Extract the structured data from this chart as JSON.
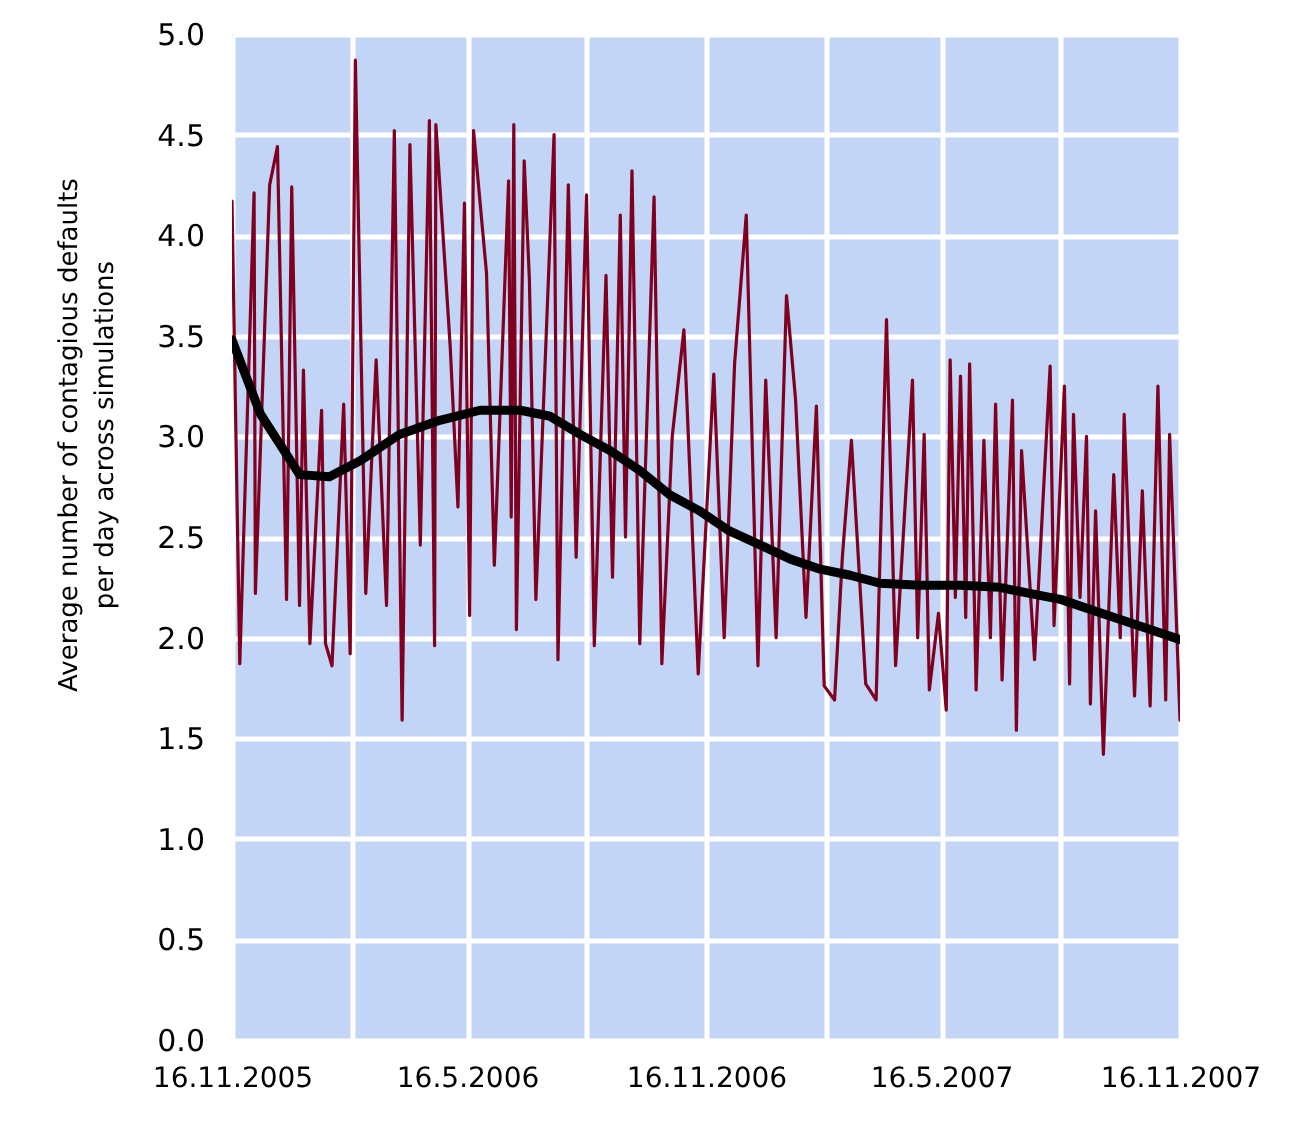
{
  "chart_data": {
    "type": "line",
    "ylabel": "Average number of contagious defaults\nper day across simulations",
    "xlim": [
      "2005-11-16",
      "2007-11-16"
    ],
    "xticks": [
      {
        "value": "2005-11-16",
        "label": "16.11.2005"
      },
      {
        "value": "2006-02-16",
        "label": null
      },
      {
        "value": "2006-05-16",
        "label": "16.5.2006"
      },
      {
        "value": "2006-08-16",
        "label": null
      },
      {
        "value": "2006-11-16",
        "label": "16.11.2006"
      },
      {
        "value": "2007-02-16",
        "label": null
      },
      {
        "value": "2007-05-16",
        "label": "16.5.2007"
      },
      {
        "value": "2007-08-16",
        "label": null
      },
      {
        "value": "2007-11-16",
        "label": "16.11.2007"
      }
    ],
    "ylim": [
      0,
      5
    ],
    "yticks": [
      {
        "value": 0,
        "label": "0.0"
      },
      {
        "value": 0.5,
        "label": "0.5"
      },
      {
        "value": 1,
        "label": "1.0"
      },
      {
        "value": 1.5,
        "label": "1.5"
      },
      {
        "value": 2,
        "label": "2.0"
      },
      {
        "value": 2.5,
        "label": "2.5"
      },
      {
        "value": 3,
        "label": "3.0"
      },
      {
        "value": 3.5,
        "label": "3.5"
      },
      {
        "value": 4,
        "label": "4.0"
      },
      {
        "value": 4.5,
        "label": "4.5"
      },
      {
        "value": 5,
        "label": "5.0"
      }
    ],
    "grid": true,
    "series": [
      {
        "color": "#80001f",
        "x": [
          "2005-11-16",
          "2005-11-22",
          "2005-12-03",
          "2005-12-04",
          "2005-12-15",
          "2005-12-21",
          "2005-12-28",
          "2006-01-01",
          "2006-01-07",
          "2006-01-10",
          "2006-01-15",
          "2006-01-24",
          "2006-01-27",
          "2006-02-01",
          "2006-02-10",
          "2006-02-15",
          "2006-02-19",
          "2006-02-27",
          "2006-03-07",
          "2006-03-15",
          "2006-03-21",
          "2006-03-27",
          "2006-04-02",
          "2006-04-10",
          "2006-04-17",
          "2006-04-21",
          "2006-04-22",
          "2006-05-03",
          "2006-05-09",
          "2006-05-14",
          "2006-05-18",
          "2006-05-21",
          "2006-05-31",
          "2006-06-06",
          "2006-06-17",
          "2006-06-19",
          "2006-06-21",
          "2006-06-23",
          "2006-06-29",
          "2006-07-03",
          "2006-07-08",
          "2006-07-22",
          "2006-07-25",
          "2006-08-02",
          "2006-08-08",
          "2006-08-16",
          "2006-08-22",
          "2006-08-31",
          "2006-09-05",
          "2006-09-11",
          "2006-09-15",
          "2006-09-20",
          "2006-09-26",
          "2006-10-07",
          "2006-10-13",
          "2006-10-21",
          "2006-10-30",
          "2006-11-10",
          "2006-11-22",
          "2006-11-30",
          "2006-12-08",
          "2006-12-17",
          "2006-12-26",
          "2007-01-01",
          "2007-01-09",
          "2007-01-17",
          "2007-01-24",
          "2007-02-01",
          "2007-02-09",
          "2007-02-15",
          "2007-02-23",
          "2007-03-01",
          "2007-03-08",
          "2007-03-19",
          "2007-03-27",
          "2007-04-04",
          "2007-04-11",
          "2007-04-24",
          "2007-04-28",
          "2007-05-03",
          "2007-05-07",
          "2007-05-14",
          "2007-05-20",
          "2007-05-23",
          "2007-05-27",
          "2007-05-31",
          "2007-06-04",
          "2007-06-07",
          "2007-06-12",
          "2007-06-18",
          "2007-06-23",
          "2007-06-27",
          "2007-07-02",
          "2007-07-10",
          "2007-07-13",
          "2007-07-17",
          "2007-07-27",
          "2007-08-08",
          "2007-08-11",
          "2007-08-19",
          "2007-08-23",
          "2007-08-26",
          "2007-08-31",
          "2007-09-05",
          "2007-09-08",
          "2007-09-12",
          "2007-09-18",
          "2007-09-26",
          "2007-10-01",
          "2007-10-04",
          "2007-10-12",
          "2007-10-18",
          "2007-10-24",
          "2007-10-30",
          "2007-11-05",
          "2007-11-08",
          "2007-11-16"
        ],
        "values": [
          4.17,
          1.87,
          4.21,
          2.22,
          4.25,
          4.44,
          2.19,
          4.24,
          2.16,
          3.33,
          1.97,
          3.13,
          1.97,
          1.86,
          3.16,
          1.92,
          4.87,
          2.22,
          3.38,
          2.16,
          4.52,
          1.59,
          4.45,
          2.46,
          4.57,
          1.96,
          4.55,
          3.45,
          2.65,
          4.16,
          2.11,
          4.52,
          3.81,
          2.36,
          4.27,
          2.6,
          4.55,
          2.04,
          4.37,
          3.78,
          2.19,
          4.5,
          1.89,
          4.25,
          2.4,
          4.2,
          1.96,
          3.8,
          2.3,
          4.1,
          2.5,
          4.32,
          1.97,
          4.19,
          1.87,
          3.0,
          3.53,
          1.82,
          3.31,
          2.0,
          3.36,
          4.1,
          1.86,
          3.28,
          2.0,
          3.7,
          3.18,
          2.1,
          3.15,
          1.76,
          1.69,
          2.4,
          2.98,
          1.77,
          1.69,
          3.58,
          1.86,
          3.28,
          2.0,
          3.01,
          1.74,
          2.12,
          1.64,
          3.38,
          2.2,
          3.3,
          2.1,
          3.36,
          1.74,
          2.98,
          2.0,
          3.16,
          1.79,
          3.18,
          1.54,
          2.93,
          1.89,
          3.35,
          2.06,
          3.25,
          1.77,
          3.11,
          2.2,
          3.0,
          1.67,
          2.63,
          1.42,
          2.81,
          2.0,
          3.11,
          1.71,
          2.73,
          1.66,
          3.25,
          1.69,
          3.01,
          1.59
        ]
      },
      {
        "color": "#000000",
        "x": [
          "2005-11-16",
          "2005-12-08",
          "2006-01-07",
          "2006-01-30",
          "2006-02-23",
          "2006-03-25",
          "2006-04-25",
          "2006-05-26",
          "2006-06-26",
          "2006-07-19",
          "2006-08-11",
          "2006-09-03",
          "2006-09-26",
          "2006-10-19",
          "2006-11-11",
          "2006-12-04",
          "2006-12-28",
          "2007-01-20",
          "2007-02-12",
          "2007-03-07",
          "2007-03-30",
          "2007-04-30",
          "2007-05-31",
          "2007-06-30",
          "2007-07-23",
          "2007-08-16",
          "2007-09-08",
          "2007-10-01",
          "2007-10-24",
          "2007-11-16"
        ],
        "values": [
          3.48,
          3.11,
          2.81,
          2.8,
          2.88,
          3.01,
          3.08,
          3.13,
          3.13,
          3.1,
          3.01,
          2.93,
          2.83,
          2.71,
          2.63,
          2.53,
          2.46,
          2.39,
          2.34,
          2.31,
          2.27,
          2.26,
          2.26,
          2.25,
          2.22,
          2.19,
          2.14,
          2.09,
          2.04,
          1.99
        ]
      }
    ]
  }
}
